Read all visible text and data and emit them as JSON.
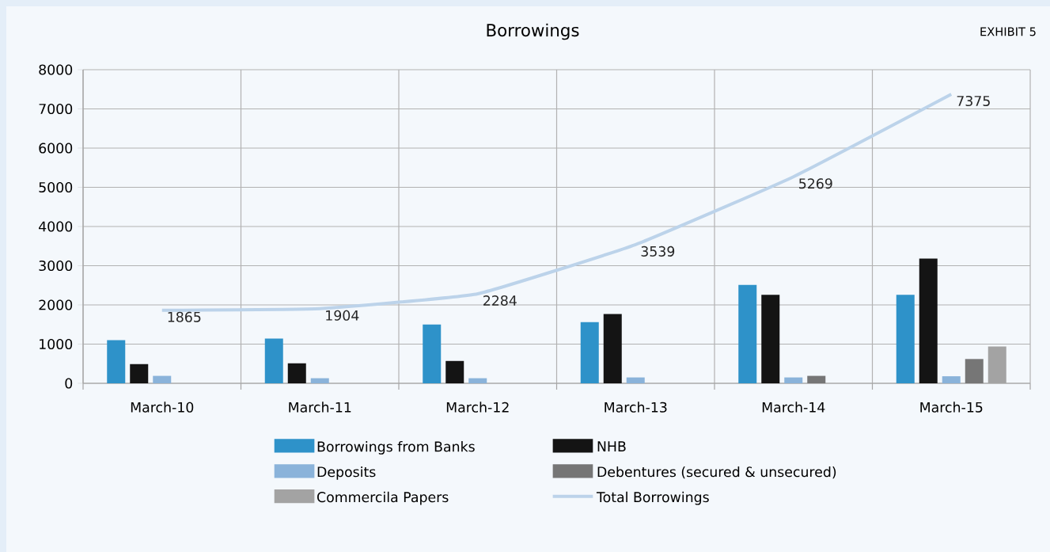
{
  "chart_data": {
    "type": "bar",
    "title": "Borrowings",
    "annotations": [
      "EXHIBIT 5"
    ],
    "categories": [
      "March-10",
      "March-11",
      "March-12",
      "March-13",
      "March-14",
      "March-15"
    ],
    "series": [
      {
        "name": "Borrowings from Banks",
        "color": "#2e92c9",
        "values": [
          1100,
          1140,
          1500,
          1560,
          2510,
          2260
        ]
      },
      {
        "name": "NHB",
        "color": "#141414",
        "values": [
          490,
          510,
          570,
          1770,
          2260,
          3180
        ]
      },
      {
        "name": "Deposits",
        "color": "#8ab3da",
        "values": [
          190,
          130,
          130,
          150,
          150,
          180
        ]
      },
      {
        "name": "Debentures (secured & unsecured)",
        "color": "#767676",
        "values": [
          null,
          null,
          null,
          null,
          190,
          620
        ]
      },
      {
        "name": "Commercila Papers",
        "color": "#a3a3a3",
        "values": [
          null,
          null,
          null,
          null,
          null,
          940
        ]
      },
      {
        "name": "Total Borrowings",
        "type": "line",
        "color": "#bcd3ea",
        "data_labels": true,
        "values": [
          1865,
          1904,
          2284,
          3539,
          5269,
          7375
        ]
      }
    ],
    "ylim": [
      0,
      8000
    ],
    "yticks": [
      0,
      1000,
      2000,
      3000,
      4000,
      5000,
      6000,
      7000,
      8000
    ],
    "grid": true,
    "legend": "bottom"
  }
}
